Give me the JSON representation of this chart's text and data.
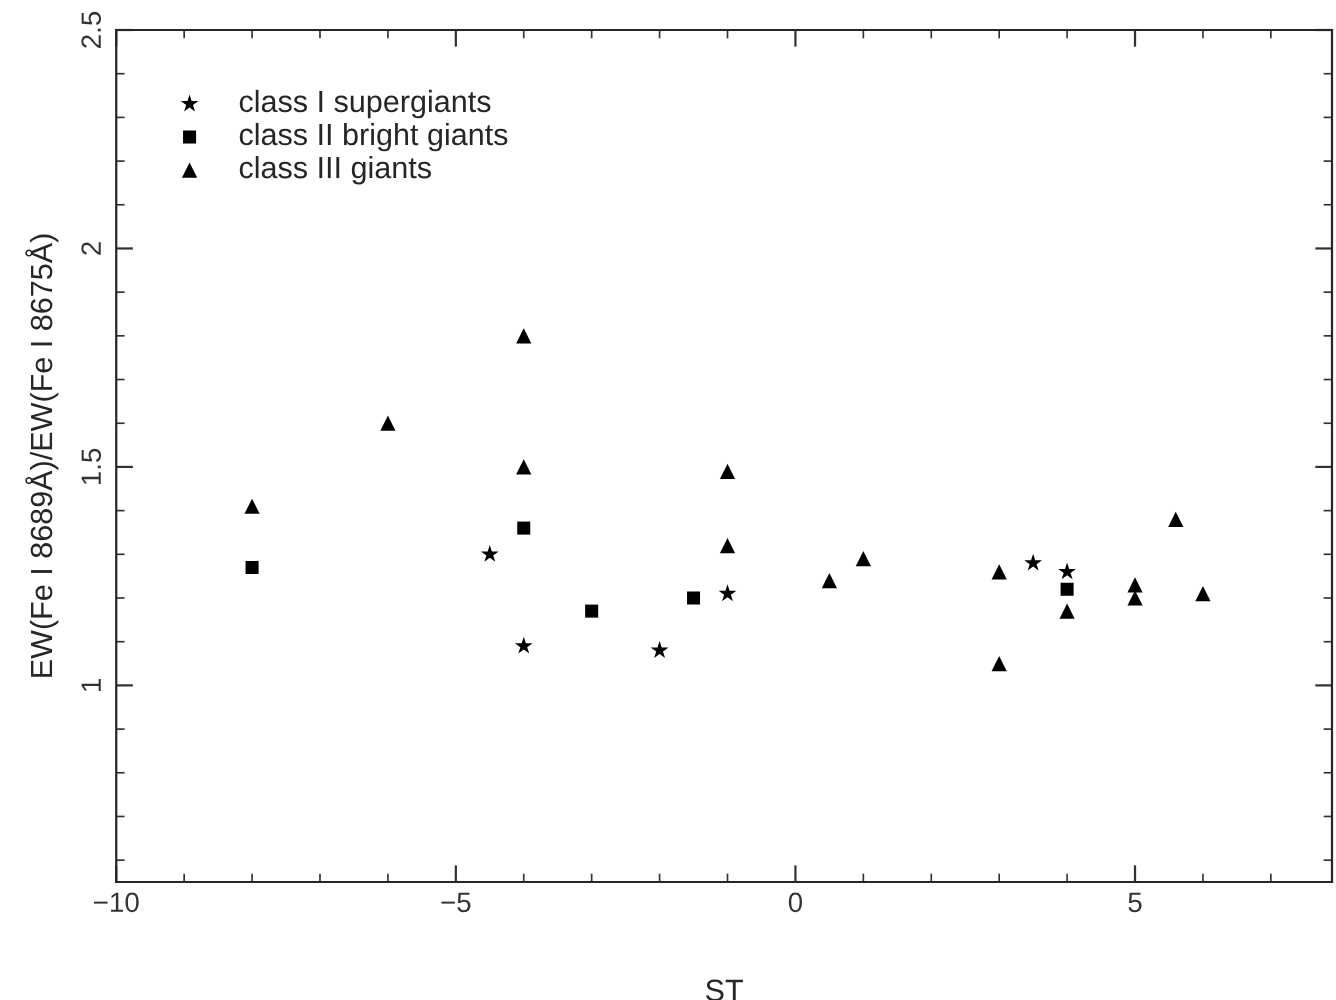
{
  "chart_data": {
    "type": "scatter",
    "xlabel": "ST",
    "ylabel": "EW(Fe I 8689Å)/EW(Fe I 8675Å)",
    "xlim": [
      -10,
      7.9
    ],
    "xticks": [
      {
        "value": -10,
        "label": "−10"
      },
      {
        "value": -5,
        "label": "−5"
      },
      0,
      5
    ],
    "ylim": [
      0.55,
      2.5
    ],
    "yticks": [
      1,
      1.5,
      2,
      2.5
    ],
    "legend": "top left",
    "grid": false,
    "series": [
      {
        "name": "class I supergiants",
        "color": "#000000",
        "marker": "star",
        "x": [
          -4.5,
          -4.0,
          -2.0,
          -1.0,
          3.5,
          4.0
        ],
        "values": [
          1.3,
          1.09,
          1.08,
          1.21,
          1.28,
          1.26
        ]
      },
      {
        "name": "class II bright giants",
        "color": "#000000",
        "marker": "square",
        "x": [
          -8.0,
          -4.0,
          -3.0,
          -1.5,
          4.0
        ],
        "values": [
          1.27,
          1.36,
          1.17,
          1.2,
          1.22
        ]
      },
      {
        "name": "class III giants",
        "color": "#000000",
        "marker": "triangle",
        "x": [
          -8.0,
          -6.0,
          -4.0,
          -4.0,
          -1.0,
          -1.0,
          0.5,
          1.0,
          3.0,
          3.0,
          4.0,
          5.0,
          5.0,
          5.6,
          6.0
        ],
        "values": [
          1.41,
          1.6,
          1.8,
          1.5,
          1.49,
          1.32,
          1.24,
          1.29,
          1.26,
          1.05,
          1.17,
          1.23,
          1.2,
          1.38,
          1.21
        ]
      }
    ]
  }
}
